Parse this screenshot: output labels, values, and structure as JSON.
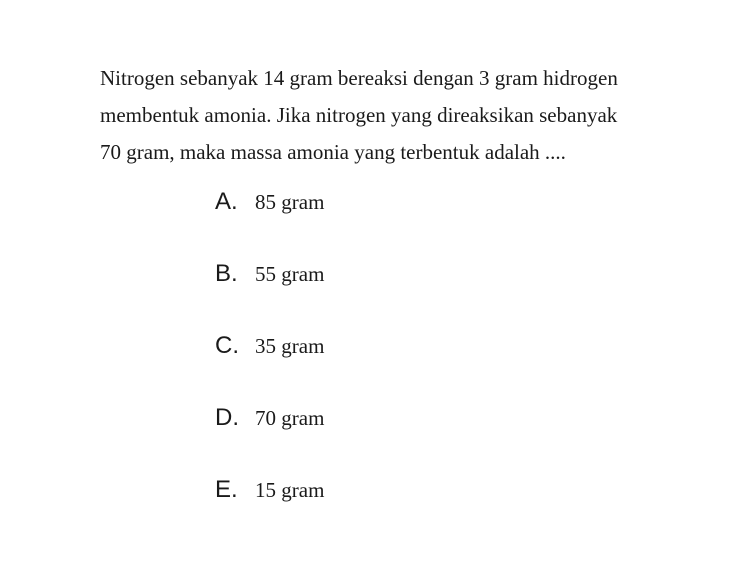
{
  "question": {
    "text": "Nitrogen sebanyak 14 gram bereaksi dengan 3 gram hidrogen membentuk amonia. Jika nitrogen yang direaksikan sebanyak 70 gram, maka massa amonia yang terbentuk adalah ....",
    "font_size": 21,
    "line_height": 1.75,
    "color": "#1a1a1a"
  },
  "options": [
    {
      "letter": "A.",
      "text": "85 gram"
    },
    {
      "letter": "B.",
      "text": "55 gram"
    },
    {
      "letter": "C.",
      "text": "35 gram"
    },
    {
      "letter": "D.",
      "text": "70 gram"
    },
    {
      "letter": "E.",
      "text": "15 gram"
    }
  ],
  "styling": {
    "background_color": "#ffffff",
    "text_color": "#1a1a1a",
    "option_letter_font": "Arial",
    "option_letter_size": 24,
    "option_text_font": "Georgia",
    "option_text_size": 21,
    "option_spacing": 44,
    "options_indent": 115
  }
}
